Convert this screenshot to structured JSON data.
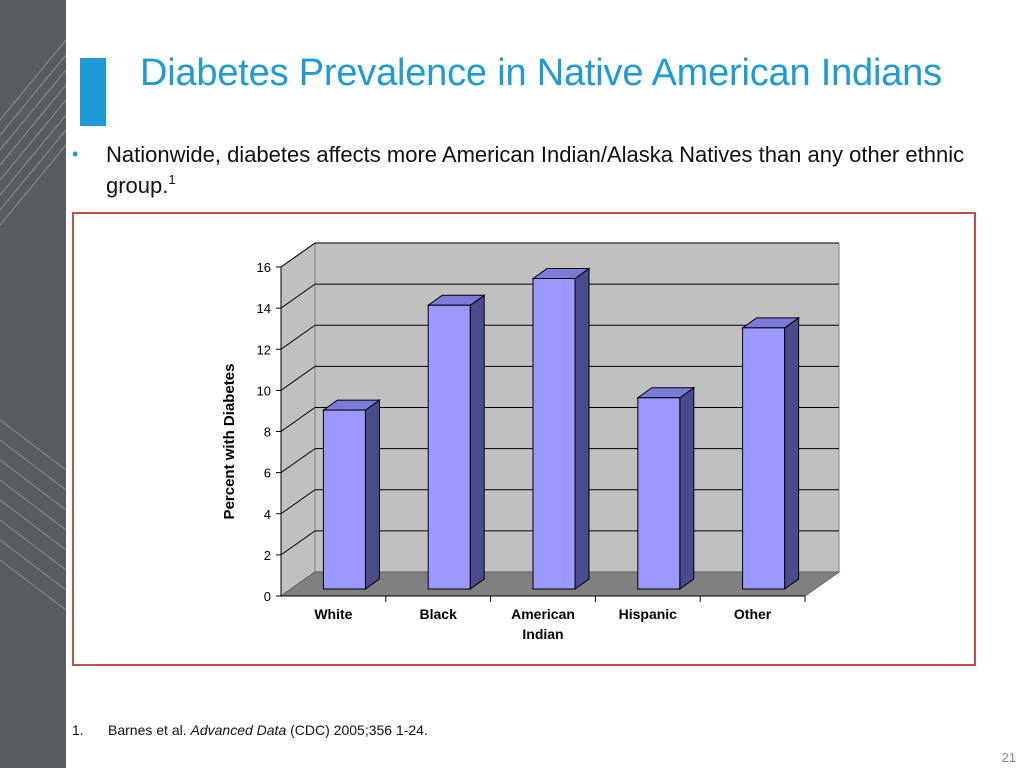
{
  "slide": {
    "title": "Diabetes Prevalence in Native American Indians",
    "bullet": {
      "text": "Nationwide, diabetes affects more American Indian/Alaska Natives than any other ethnic group.",
      "superscript": "1"
    },
    "footnote": {
      "number": "1.",
      "authors": "Barnes et al. ",
      "journal": "Advanced Data",
      "rest": " (CDC) 2005;356 1-24."
    },
    "page_number": "21"
  },
  "colors": {
    "accent": "#1e9ad6",
    "frame": "#c0504d",
    "bar_front": "#9999ff",
    "bar_side": "#4a4a8c",
    "plot_wall": "#c0c0c0",
    "floor": "#808080"
  },
  "chart_data": {
    "type": "bar",
    "title": "",
    "xlabel": "",
    "ylabel": "Percent with Diabetes",
    "categories": [
      "White",
      "Black",
      "American\nIndian",
      "Hispanic",
      "Other"
    ],
    "values": [
      8.7,
      13.8,
      15.1,
      9.3,
      12.7
    ],
    "ylim": [
      0,
      16
    ],
    "yticks": [
      0,
      2,
      4,
      6,
      8,
      10,
      12,
      14,
      16
    ],
    "grid": true,
    "legend": "none",
    "style": "3d-column"
  }
}
